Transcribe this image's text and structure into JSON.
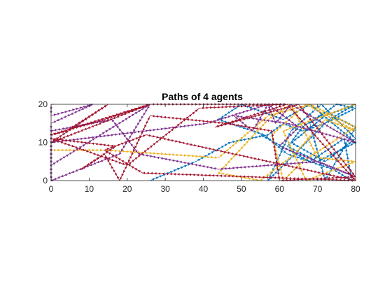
{
  "chart_data": {
    "type": "line",
    "title": "Paths of 4 agents",
    "xlabel": "",
    "ylabel": "",
    "xlim": [
      0,
      80
    ],
    "ylim": [
      0,
      20
    ],
    "xticks": [
      0,
      10,
      20,
      30,
      40,
      50,
      60,
      70,
      80
    ],
    "yticks": [
      0,
      10,
      20
    ],
    "grid": false,
    "legend": "none",
    "series": [
      {
        "color": "#0072BD",
        "marker": "arrow",
        "x": [
          26,
          38,
          47,
          57,
          61,
          66,
          72,
          80,
          75,
          68,
          72,
          80,
          72,
          66,
          63,
          72,
          80,
          71,
          63,
          57,
          73,
          80,
          72,
          62,
          70,
          80,
          68,
          61,
          50,
          44,
          56,
          62,
          74,
          79,
          77,
          68,
          55
        ],
        "y": [
          0,
          5,
          10,
          12,
          15,
          13,
          15,
          19,
          20,
          15,
          0,
          14,
          18,
          14,
          10,
          5,
          11,
          20,
          13,
          0,
          16,
          20,
          17,
          9,
          5,
          10,
          20,
          16,
          20,
          16,
          12,
          7,
          3,
          0,
          11,
          5,
          12
        ]
      },
      {
        "color": "#D95319",
        "marker": "none",
        "x": [],
        "y": []
      },
      {
        "color": "#EDB120",
        "marker": "arrow",
        "x": [
          0,
          14,
          44,
          57,
          68,
          80,
          66,
          61,
          58,
          67,
          80,
          72,
          64,
          55,
          44,
          57,
          63,
          70,
          80,
          67,
          61,
          69,
          80
        ],
        "y": [
          8,
          8,
          6,
          17,
          20,
          14,
          5,
          0,
          12,
          20,
          13,
          16,
          7,
          0,
          2,
          16,
          20,
          6,
          5,
          0,
          13,
          16,
          20
        ]
      },
      {
        "color": "#7E2F8E",
        "marker": "arrow",
        "x": [
          0,
          0,
          11,
          0,
          0,
          26,
          18,
          0,
          0,
          41,
          57,
          59,
          63,
          80,
          62,
          48,
          53,
          57,
          65,
          60,
          80,
          70,
          44,
          23,
          16,
          0,
          0
        ],
        "y": [
          20,
          17,
          20,
          15,
          4,
          20,
          7,
          0,
          10,
          15,
          20,
          15,
          20,
          10,
          15,
          17,
          13,
          20,
          14,
          9,
          1,
          5,
          3,
          7,
          16,
          13,
          0
        ]
      },
      {
        "color": "#A2142F",
        "marker": "arrow",
        "x": [
          0,
          14,
          26,
          0,
          15,
          4,
          0,
          26,
          62,
          43,
          65,
          80,
          60,
          58,
          46,
          26,
          18,
          14,
          8,
          17,
          0,
          20,
          39,
          62,
          80,
          24,
          14,
          25,
          80
        ],
        "y": [
          12,
          16,
          20,
          10,
          20,
          13,
          12,
          20,
          20,
          14,
          20,
          1,
          0,
          13,
          15,
          17,
          0,
          7,
          3,
          9,
          11,
          4,
          19,
          20,
          0,
          2,
          8,
          12,
          0
        ]
      }
    ]
  }
}
